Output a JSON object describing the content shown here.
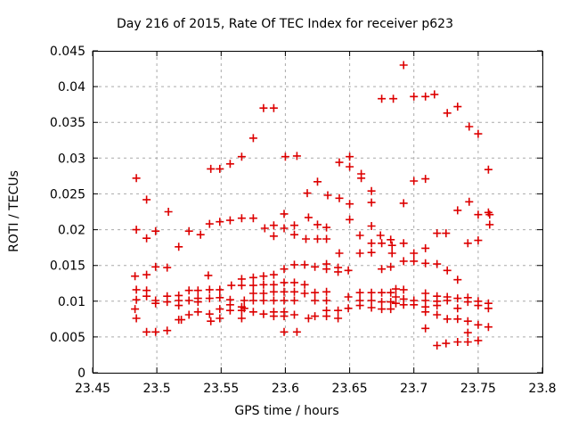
{
  "chart_data": {
    "type": "scatter",
    "title": "Day 216 of 2015, Rate Of TEC Index for receiver p623",
    "xlabel": "GPS time / hours",
    "ylabel": "ROTI / TECUs",
    "xlim": [
      23.45,
      23.8
    ],
    "ylim": [
      0,
      0.045
    ],
    "xticks": [
      23.45,
      23.5,
      23.55,
      23.6,
      23.65,
      23.7,
      23.75,
      23.8
    ],
    "xtick_labels": [
      "23.45",
      "23.5",
      "23.55",
      "23.6",
      "23.65",
      "23.7",
      "23.75",
      "23.8"
    ],
    "yticks": [
      0,
      0.005,
      0.01,
      0.015,
      0.02,
      0.025,
      0.03,
      0.035,
      0.04,
      0.045
    ],
    "ytick_labels": [
      "0",
      "0.005",
      "0.01",
      "0.015",
      "0.02",
      "0.025",
      "0.03",
      "0.035",
      "0.04",
      "0.045"
    ],
    "grid": true,
    "legend_position": "none",
    "marker": {
      "shape": "plus",
      "color": "#dd0000",
      "size": 9
    },
    "colors": {
      "grid": "#aaaaaa",
      "axis": "#000000",
      "background": "#ffffff"
    },
    "series": [
      {
        "name": "ROTI",
        "points": [
          [
            23.484,
            0.0272
          ],
          [
            23.492,
            0.0242
          ],
          [
            23.509,
            0.0225
          ],
          [
            23.542,
            0.0285
          ],
          [
            23.549,
            0.0285
          ],
          [
            23.557,
            0.0292
          ],
          [
            23.566,
            0.0302
          ],
          [
            23.583,
            0.037
          ],
          [
            23.591,
            0.037
          ],
          [
            23.675,
            0.0383
          ],
          [
            23.684,
            0.0383
          ],
          [
            23.575,
            0.0328
          ],
          [
            23.6,
            0.0302
          ],
          [
            23.609,
            0.0303
          ],
          [
            23.65,
            0.0302
          ],
          [
            23.642,
            0.0294
          ],
          [
            23.65,
            0.0288
          ],
          [
            23.659,
            0.0278
          ],
          [
            23.659,
            0.0272
          ],
          [
            23.625,
            0.0267
          ],
          [
            23.617,
            0.0251
          ],
          [
            23.633,
            0.0248
          ],
          [
            23.642,
            0.0244
          ],
          [
            23.667,
            0.0254
          ],
          [
            23.667,
            0.0238
          ],
          [
            23.65,
            0.0236
          ],
          [
            23.692,
            0.043
          ],
          [
            23.7,
            0.0386
          ],
          [
            23.709,
            0.0386
          ],
          [
            23.716,
            0.0389
          ],
          [
            23.726,
            0.0363
          ],
          [
            23.734,
            0.0372
          ],
          [
            23.743,
            0.0344
          ],
          [
            23.75,
            0.0334
          ],
          [
            23.758,
            0.0284
          ],
          [
            23.7,
            0.0268
          ],
          [
            23.709,
            0.0271
          ],
          [
            23.692,
            0.0237
          ],
          [
            23.743,
            0.0239
          ],
          [
            23.734,
            0.0227
          ],
          [
            23.758,
            0.0224
          ],
          [
            23.484,
            0.02
          ],
          [
            23.499,
            0.0198
          ],
          [
            23.492,
            0.0188
          ],
          [
            23.525,
            0.0198
          ],
          [
            23.534,
            0.0193
          ],
          [
            23.517,
            0.0176
          ],
          [
            23.541,
            0.0208
          ],
          [
            23.549,
            0.0211
          ],
          [
            23.557,
            0.0213
          ],
          [
            23.566,
            0.0216
          ],
          [
            23.499,
            0.0148
          ],
          [
            23.508,
            0.0147
          ],
          [
            23.483,
            0.0135
          ],
          [
            23.492,
            0.0137
          ],
          [
            23.54,
            0.0136
          ],
          [
            23.484,
            0.0116
          ],
          [
            23.492,
            0.0115
          ],
          [
            23.492,
            0.0107
          ],
          [
            23.484,
            0.0102
          ],
          [
            23.483,
            0.0089
          ],
          [
            23.484,
            0.0076
          ],
          [
            23.499,
            0.0101
          ],
          [
            23.499,
            0.0097
          ],
          [
            23.508,
            0.0107
          ],
          [
            23.508,
            0.0099
          ],
          [
            23.517,
            0.0108
          ],
          [
            23.517,
            0.0101
          ],
          [
            23.517,
            0.0094
          ],
          [
            23.525,
            0.0115
          ],
          [
            23.525,
            0.0101
          ],
          [
            23.525,
            0.0081
          ],
          [
            23.532,
            0.0115
          ],
          [
            23.532,
            0.0104
          ],
          [
            23.532,
            0.0099
          ],
          [
            23.532,
            0.0085
          ],
          [
            23.541,
            0.0116
          ],
          [
            23.541,
            0.0104
          ],
          [
            23.541,
            0.0082
          ],
          [
            23.542,
            0.0072
          ],
          [
            23.549,
            0.0116
          ],
          [
            23.549,
            0.0105
          ],
          [
            23.549,
            0.0089
          ],
          [
            23.549,
            0.0076
          ],
          [
            23.558,
            0.0122
          ],
          [
            23.557,
            0.0102
          ],
          [
            23.557,
            0.0095
          ],
          [
            23.557,
            0.0087
          ],
          [
            23.566,
            0.0131
          ],
          [
            23.566,
            0.0122
          ],
          [
            23.566,
            0.0092
          ],
          [
            23.566,
            0.0087
          ],
          [
            23.566,
            0.0076
          ],
          [
            23.517,
            0.0074
          ],
          [
            23.519,
            0.0074
          ],
          [
            23.492,
            0.0057
          ],
          [
            23.499,
            0.0057
          ],
          [
            23.508,
            0.0059
          ],
          [
            23.575,
            0.0216
          ],
          [
            23.599,
            0.0222
          ],
          [
            23.618,
            0.0217
          ],
          [
            23.584,
            0.0202
          ],
          [
            23.591,
            0.0206
          ],
          [
            23.599,
            0.0202
          ],
          [
            23.607,
            0.0206
          ],
          [
            23.625,
            0.0207
          ],
          [
            23.632,
            0.0203
          ],
          [
            23.65,
            0.0214
          ],
          [
            23.591,
            0.0191
          ],
          [
            23.607,
            0.0193
          ],
          [
            23.616,
            0.0187
          ],
          [
            23.625,
            0.0187
          ],
          [
            23.632,
            0.0187
          ],
          [
            23.667,
            0.0205
          ],
          [
            23.658,
            0.0192
          ],
          [
            23.674,
            0.0192
          ],
          [
            23.682,
            0.0186
          ],
          [
            23.667,
            0.0181
          ],
          [
            23.675,
            0.0181
          ],
          [
            23.683,
            0.0178
          ],
          [
            23.642,
            0.0167
          ],
          [
            23.658,
            0.0167
          ],
          [
            23.667,
            0.0168
          ],
          [
            23.683,
            0.0167
          ],
          [
            23.599,
            0.0145
          ],
          [
            23.607,
            0.0151
          ],
          [
            23.615,
            0.0151
          ],
          [
            23.623,
            0.0148
          ],
          [
            23.632,
            0.0152
          ],
          [
            23.632,
            0.0145
          ],
          [
            23.641,
            0.0147
          ],
          [
            23.641,
            0.0141
          ],
          [
            23.649,
            0.0143
          ],
          [
            23.675,
            0.0145
          ],
          [
            23.682,
            0.0148
          ],
          [
            23.575,
            0.0133
          ],
          [
            23.583,
            0.0135
          ],
          [
            23.591,
            0.0137
          ],
          [
            23.575,
            0.0122
          ],
          [
            23.583,
            0.0123
          ],
          [
            23.591,
            0.0123
          ],
          [
            23.575,
            0.0111
          ],
          [
            23.583,
            0.0111
          ],
          [
            23.591,
            0.0113
          ],
          [
            23.599,
            0.0126
          ],
          [
            23.599,
            0.0113
          ],
          [
            23.607,
            0.0126
          ],
          [
            23.607,
            0.0113
          ],
          [
            23.599,
            0.0101
          ],
          [
            23.615,
            0.0123
          ],
          [
            23.615,
            0.0111
          ],
          [
            23.623,
            0.0112
          ],
          [
            23.623,
            0.0101
          ],
          [
            23.632,
            0.0113
          ],
          [
            23.632,
            0.0101
          ],
          [
            23.607,
            0.0101
          ],
          [
            23.591,
            0.0101
          ],
          [
            23.575,
            0.0101
          ],
          [
            23.583,
            0.0101
          ],
          [
            23.568,
            0.0101
          ],
          [
            23.568,
            0.009
          ],
          [
            23.575,
            0.0085
          ],
          [
            23.583,
            0.0082
          ],
          [
            23.591,
            0.0085
          ],
          [
            23.591,
            0.0079
          ],
          [
            23.599,
            0.0085
          ],
          [
            23.599,
            0.0079
          ],
          [
            23.607,
            0.0081
          ],
          [
            23.618,
            0.0076
          ],
          [
            23.623,
            0.0079
          ],
          [
            23.632,
            0.0079
          ],
          [
            23.632,
            0.0087
          ],
          [
            23.641,
            0.0087
          ],
          [
            23.641,
            0.0076
          ],
          [
            23.649,
            0.009
          ],
          [
            23.658,
            0.0094
          ],
          [
            23.667,
            0.0091
          ],
          [
            23.675,
            0.0089
          ],
          [
            23.682,
            0.0089
          ],
          [
            23.675,
            0.0099
          ],
          [
            23.682,
            0.0099
          ],
          [
            23.667,
            0.0101
          ],
          [
            23.658,
            0.0101
          ],
          [
            23.649,
            0.0106
          ],
          [
            23.658,
            0.0112
          ],
          [
            23.667,
            0.0112
          ],
          [
            23.675,
            0.0112
          ],
          [
            23.682,
            0.0112
          ],
          [
            23.599,
            0.0057
          ],
          [
            23.609,
            0.0057
          ],
          [
            23.75,
            0.0221
          ],
          [
            23.759,
            0.0221
          ],
          [
            23.759,
            0.0207
          ],
          [
            23.718,
            0.0195
          ],
          [
            23.725,
            0.0195
          ],
          [
            23.692,
            0.0181
          ],
          [
            23.742,
            0.0181
          ],
          [
            23.75,
            0.0185
          ],
          [
            23.709,
            0.0174
          ],
          [
            23.7,
            0.0167
          ],
          [
            23.692,
            0.0156
          ],
          [
            23.7,
            0.0156
          ],
          [
            23.709,
            0.0153
          ],
          [
            23.718,
            0.0152
          ],
          [
            23.726,
            0.0143
          ],
          [
            23.734,
            0.013
          ],
          [
            23.692,
            0.0116
          ],
          [
            23.692,
            0.0103
          ],
          [
            23.692,
            0.0095
          ],
          [
            23.686,
            0.0117
          ],
          [
            23.686,
            0.0106
          ],
          [
            23.686,
            0.0097
          ],
          [
            23.7,
            0.0101
          ],
          [
            23.7,
            0.0095
          ],
          [
            23.709,
            0.0111
          ],
          [
            23.709,
            0.0101
          ],
          [
            23.709,
            0.0092
          ],
          [
            23.709,
            0.0085
          ],
          [
            23.718,
            0.0107
          ],
          [
            23.718,
            0.01
          ],
          [
            23.718,
            0.0094
          ],
          [
            23.718,
            0.0081
          ],
          [
            23.726,
            0.0106
          ],
          [
            23.726,
            0.0101
          ],
          [
            23.734,
            0.0104
          ],
          [
            23.734,
            0.009
          ],
          [
            23.742,
            0.0105
          ],
          [
            23.742,
            0.0099
          ],
          [
            23.75,
            0.01
          ],
          [
            23.75,
            0.0094
          ],
          [
            23.758,
            0.0097
          ],
          [
            23.758,
            0.009
          ],
          [
            23.726,
            0.0075
          ],
          [
            23.734,
            0.0075
          ],
          [
            23.742,
            0.0072
          ],
          [
            23.75,
            0.0067
          ],
          [
            23.758,
            0.0064
          ],
          [
            23.709,
            0.0062
          ],
          [
            23.742,
            0.0056
          ],
          [
            23.734,
            0.0043
          ],
          [
            23.742,
            0.0043
          ],
          [
            23.75,
            0.0045
          ],
          [
            23.718,
            0.0038
          ],
          [
            23.725,
            0.0041
          ]
        ]
      }
    ]
  }
}
